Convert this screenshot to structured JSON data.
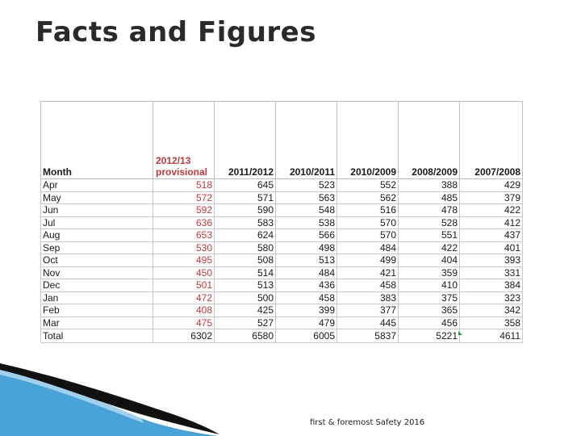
{
  "slide": {
    "title": "Facts and Figures",
    "footer": "first & foremost Safety 2016",
    "colors": {
      "provisional": "#c0393d",
      "accent_blue": "#4aa3d8",
      "dark": "#111111"
    }
  },
  "table": {
    "headers": {
      "month": "Month",
      "provisional_line1": "2012/13",
      "provisional_line2": "provisional",
      "y2011": "2011/2012",
      "y2010": "2010/2011",
      "y2009": "2010/2009",
      "y2008": "2008/2009",
      "y2007": "2007/2008"
    },
    "rows": [
      {
        "month": "Apr",
        "v": [
          "518",
          "645",
          "523",
          "552",
          "388",
          "429"
        ]
      },
      {
        "month": "May",
        "v": [
          "572",
          "571",
          "563",
          "562",
          "485",
          "379"
        ]
      },
      {
        "month": "Jun",
        "v": [
          "592",
          "590",
          "548",
          "516",
          "478",
          "422"
        ]
      },
      {
        "month": "Jul",
        "v": [
          "636",
          "583",
          "538",
          "570",
          "528",
          "412"
        ]
      },
      {
        "month": "Aug",
        "v": [
          "653",
          "624",
          "566",
          "570",
          "551",
          "437"
        ]
      },
      {
        "month": "Sep",
        "v": [
          "530",
          "580",
          "498",
          "484",
          "422",
          "401"
        ]
      },
      {
        "month": "Oct",
        "v": [
          "495",
          "508",
          "513",
          "499",
          "404",
          "393"
        ]
      },
      {
        "month": "Nov",
        "v": [
          "450",
          "514",
          "484",
          "421",
          "359",
          "331"
        ]
      },
      {
        "month": "Dec",
        "v": [
          "501",
          "513",
          "436",
          "458",
          "410",
          "384"
        ]
      },
      {
        "month": "Jan",
        "v": [
          "472",
          "500",
          "458",
          "383",
          "375",
          "323"
        ]
      },
      {
        "month": "Feb",
        "v": [
          "408",
          "425",
          "399",
          "377",
          "365",
          "342"
        ]
      },
      {
        "month": "Mar",
        "v": [
          "475",
          "527",
          "479",
          "445",
          "456",
          "358"
        ]
      },
      {
        "month": "Total",
        "v": [
          "6302",
          "6580",
          "6005",
          "5837",
          "5221",
          "4611"
        ]
      }
    ]
  }
}
